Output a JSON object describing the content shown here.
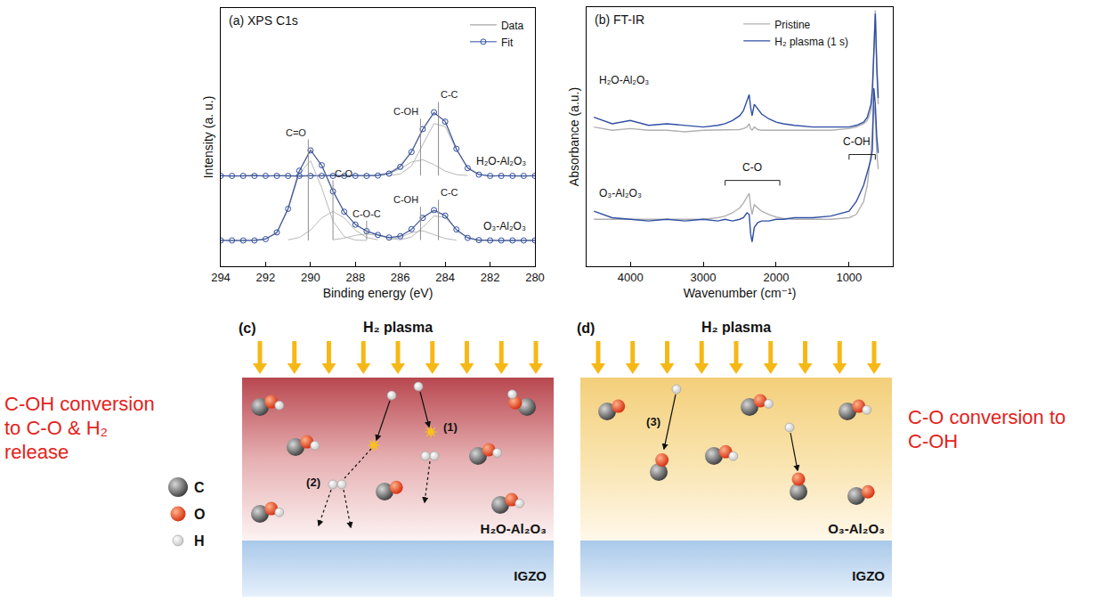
{
  "chart_data": [
    {
      "type": "line",
      "title": "(a) XPS C1s",
      "x_label": "Binding energy (eV)",
      "y_label": "Intensity (a. u.)",
      "xlim": [
        294,
        280
      ],
      "xticks": [
        294,
        292,
        290,
        288,
        286,
        284,
        282,
        280
      ],
      "ylim": [
        0.2,
        1
      ],
      "tick_labels": "x",
      "grid": false,
      "legend": "top right",
      "x": [
        294,
        293.5,
        293,
        292.5,
        292,
        291.5,
        291,
        290.5,
        290,
        289.5,
        289,
        288.5,
        288,
        287.5,
        287,
        286.5,
        286,
        285.5,
        285,
        284.5,
        284,
        283.5,
        283,
        282.5,
        282,
        281.5,
        281,
        280.5,
        280
      ],
      "samples": [
        {
          "label": "H₂O-Al₂O₃",
          "label_x": 280.3,
          "label_y": 0.5,
          "series": [
            {
              "name": "Data",
              "color": "#a6a6a6",
              "line_style": "solid",
              "values": [
                0.481,
                0.479,
                0.48,
                0.482,
                0.479,
                0.481,
                0.48,
                0.478,
                0.481,
                0.48,
                0.482,
                0.479,
                0.481,
                0.48,
                0.483,
                0.489,
                0.511,
                0.556,
                0.623,
                0.675,
                0.65,
                0.562,
                0.506,
                0.485,
                0.479,
                0.481,
                0.48,
                0.479,
                0.481
              ]
            },
            {
              "name": "Fit",
              "color": "#2f4ea3",
              "line_style": "solid",
              "marker": "open circle",
              "values": [
                0.48,
                0.48,
                0.48,
                0.48,
                0.48,
                0.48,
                0.48,
                0.48,
                0.48,
                0.48,
                0.48,
                0.48,
                0.48,
                0.48,
                0.481,
                0.487,
                0.508,
                0.554,
                0.625,
                0.677,
                0.648,
                0.564,
                0.504,
                0.484,
                0.48,
                0.48,
                0.48,
                0.48,
                0.48
              ]
            }
          ],
          "peaks": [
            {
              "name": "C-OH",
              "center": 285.1,
              "x": [
                287,
                286.5,
                286,
                285.5,
                285,
                284.5,
                284,
                283.5,
                283
              ],
              "values": [
                0.481,
                0.487,
                0.502,
                0.523,
                0.53,
                0.515,
                0.495,
                0.484,
                0.481
              ]
            },
            {
              "name": "C-C",
              "center": 284.3,
              "x": [
                286.5,
                286,
                285.5,
                285,
                284.5,
                284,
                283.5,
                283,
                282.5
              ],
              "values": [
                0.481,
                0.486,
                0.511,
                0.575,
                0.642,
                0.633,
                0.56,
                0.503,
                0.484
              ]
            }
          ]
        },
        {
          "label": "O₃-Al₂O₃",
          "label_x": 280.3,
          "label_y": 0.3,
          "series": [
            {
              "name": "Data",
              "color": "#a6a6a6",
              "line_style": "solid",
              "values": [
                0.281,
                0.279,
                0.28,
                0.281,
                0.285,
                0.303,
                0.38,
                0.494,
                0.561,
                0.511,
                0.434,
                0.367,
                0.33,
                0.308,
                0.298,
                0.288,
                0.294,
                0.313,
                0.352,
                0.372,
                0.358,
                0.312,
                0.289,
                0.28,
                0.281,
                0.279,
                0.28,
                0.281,
                0.28
              ]
            },
            {
              "name": "Fit",
              "color": "#2f4ea3",
              "line_style": "solid",
              "marker": "open circle",
              "values": [
                0.28,
                0.28,
                0.28,
                0.28,
                0.284,
                0.305,
                0.378,
                0.496,
                0.559,
                0.513,
                0.432,
                0.369,
                0.329,
                0.309,
                0.297,
                0.289,
                0.293,
                0.315,
                0.35,
                0.374,
                0.357,
                0.314,
                0.288,
                0.281,
                0.28,
                0.28,
                0.28,
                0.28,
                0.28
              ]
            }
          ],
          "peaks": [
            {
              "name": "C=O",
              "center": 290.1,
              "x": [
                292.5,
                292,
                291.5,
                291,
                290.5,
                290,
                289.5,
                289,
                288.5,
                288,
                287.5
              ],
              "values": [
                0.28,
                0.284,
                0.305,
                0.376,
                0.487,
                0.527,
                0.443,
                0.34,
                0.292,
                0.281,
                0.28
              ]
            },
            {
              "name": "C-O",
              "center": 289,
              "x": [
                291,
                290.5,
                290,
                289.5,
                289,
                288.5,
                288,
                287.5,
                287
              ],
              "values": [
                0.282,
                0.289,
                0.312,
                0.35,
                0.37,
                0.35,
                0.312,
                0.289,
                0.282
              ]
            },
            {
              "name": "C-O-C",
              "center": 287.5,
              "x": [
                289,
                288.5,
                288,
                287.5,
                287,
                286.5,
                286
              ],
              "values": [
                0.282,
                0.287,
                0.296,
                0.3,
                0.296,
                0.287,
                0.282
              ]
            },
            {
              "name": "C-OH",
              "center": 285.1,
              "x": [
                286.5,
                286,
                285.5,
                285,
                284.5,
                284,
                283.5
              ],
              "values": [
                0.282,
                0.29,
                0.304,
                0.31,
                0.298,
                0.286,
                0.281
              ]
            },
            {
              "name": "C-C",
              "center": 284.3,
              "x": [
                286,
                285.5,
                285,
                284.5,
                284,
                283.5,
                283,
                282.5
              ],
              "values": [
                0.282,
                0.291,
                0.32,
                0.356,
                0.351,
                0.313,
                0.288,
                0.281
              ]
            }
          ]
        }
      ]
    },
    {
      "type": "line",
      "title": "(b) FT-IR",
      "x_label": "Wavenumber (cm⁻¹)",
      "y_label": "Absorbance (a.u.)",
      "xlim": [
        4600,
        400
      ],
      "xticks": [
        4000,
        3000,
        2000,
        1000
      ],
      "ylim": [
        0.2,
        1
      ],
      "tick_labels": "x",
      "grid": false,
      "legend": "top right",
      "x": [
        4500,
        4250,
        4000,
        3750,
        3500,
        3250,
        3000,
        2800,
        2700,
        2600,
        2500,
        2450,
        2400,
        2370,
        2350,
        2330,
        2300,
        2250,
        2200,
        2100,
        2000,
        1900,
        1750,
        1500,
        1250,
        1000,
        900,
        800,
        750,
        700,
        680,
        660,
        640,
        620,
        600
      ],
      "samples": [
        {
          "label": "H₂O-Al₂O₃",
          "label_x": 4450,
          "label_y": 0.75,
          "series": [
            {
              "name": "Pristine",
              "color": "#b0b0b0",
              "line_style": "solid",
              "values": [
                0.63,
                0.62,
                0.625,
                0.62,
                0.62,
                0.615,
                0.62,
                0.62,
                0.62,
                0.62,
                0.622,
                0.625,
                0.63,
                0.64,
                0.625,
                0.62,
                0.63,
                0.622,
                0.62,
                0.62,
                0.62,
                0.62,
                0.62,
                0.62,
                0.62,
                0.625,
                0.63,
                0.64,
                0.65,
                0.68,
                0.72,
                0.85,
                0.99,
                0.8,
                0.7
              ]
            },
            {
              "name": "H₂ plasma (1 s)",
              "color": "#2f4ea3",
              "line_style": "solid",
              "values": [
                0.66,
                0.64,
                0.65,
                0.635,
                0.64,
                0.635,
                0.63,
                0.635,
                0.64,
                0.65,
                0.665,
                0.68,
                0.71,
                0.73,
                0.69,
                0.665,
                0.7,
                0.685,
                0.67,
                0.655,
                0.645,
                0.64,
                0.635,
                0.63,
                0.63,
                0.63,
                0.635,
                0.645,
                0.66,
                0.7,
                0.75,
                0.88,
                0.98,
                0.82,
                0.72
              ]
            }
          ]
        },
        {
          "label": "O₃-Al₂O₃",
          "label_x": 4450,
          "label_y": 0.4,
          "series": [
            {
              "name": "Pristine",
              "color": "#b0b0b0",
              "line_style": "solid",
              "values": [
                0.345,
                0.345,
                0.345,
                0.345,
                0.345,
                0.345,
                0.345,
                0.35,
                0.355,
                0.365,
                0.38,
                0.395,
                0.415,
                0.425,
                0.385,
                0.36,
                0.39,
                0.38,
                0.37,
                0.36,
                0.352,
                0.348,
                0.345,
                0.345,
                0.345,
                0.35,
                0.36,
                0.4,
                0.45,
                0.55,
                0.62,
                0.7,
                0.66,
                0.55,
                0.5
              ]
            },
            {
              "name": "H₂ plasma (1 s)",
              "color": "#2f4ea3",
              "line_style": "solid",
              "values": [
                0.37,
                0.35,
                0.345,
                0.34,
                0.345,
                0.34,
                0.345,
                0.34,
                0.345,
                0.34,
                0.345,
                0.35,
                0.365,
                0.36,
                0.3,
                0.275,
                0.32,
                0.335,
                0.34,
                0.34,
                0.345,
                0.345,
                0.35,
                0.35,
                0.355,
                0.37,
                0.4,
                0.45,
                0.49,
                0.53,
                0.56,
                0.75,
                0.7,
                0.6,
                0.55
              ]
            }
          ]
        }
      ],
      "annotations": [
        {
          "text": "C-O",
          "x": 2325,
          "y": 0.48,
          "bracket": [
            2700,
            1950
          ],
          "bracket_y": 0.465
        },
        {
          "text": "C-OH",
          "x": 900,
          "y": 0.56,
          "bracket": [
            1000,
            640
          ],
          "bracket_y": 0.545
        }
      ]
    }
  ],
  "diagrams": [
    {
      "letter": "(c)",
      "source": "H₂ plasma",
      "film": "H₂O-Al₂O₃",
      "substrate": "IGZO",
      "steps": [
        "(1)",
        "(2)"
      ],
      "note": "C-OH conversion to C-O & H₂ release"
    },
    {
      "letter": "(d)",
      "source": "H₂ plasma",
      "film": "O₃-Al₂O₃",
      "substrate": "IGZO",
      "steps": [
        "(3)"
      ],
      "note": "C-O conversion to C-OH"
    }
  ],
  "key": [
    {
      "label": "C",
      "color": "#3a3a3a"
    },
    {
      "label": "O",
      "color": "#d42a0c"
    },
    {
      "label": "H",
      "color": "#c4c4c4"
    }
  ]
}
